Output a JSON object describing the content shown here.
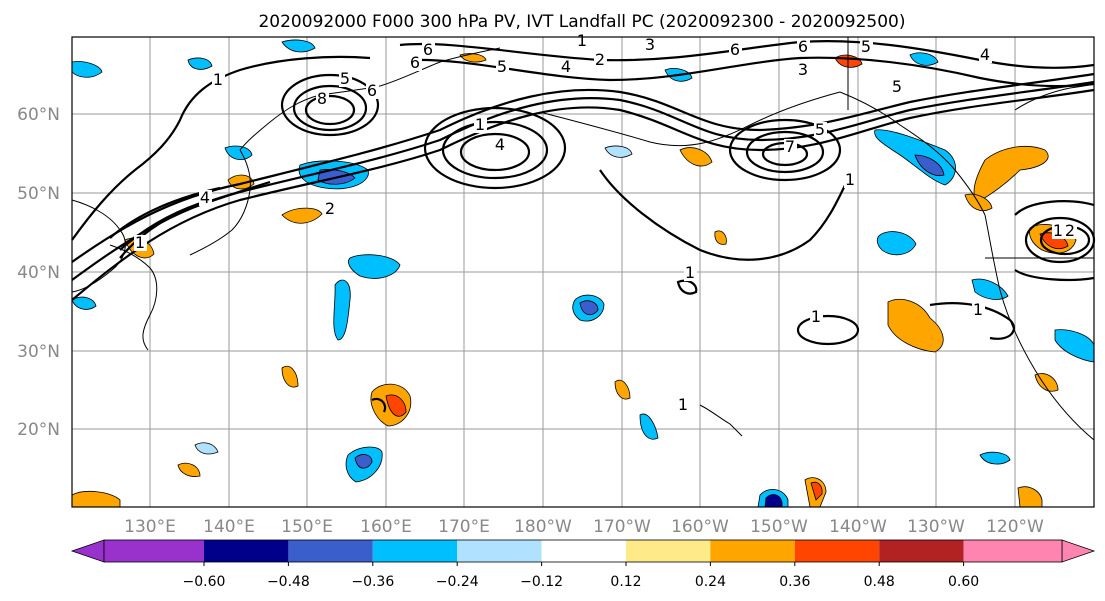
{
  "title": "2020092000 F000 300 hPa PV, IVT Landfall PC (2020092300 - 2020092500)",
  "map": {
    "lon_labels": [
      "130°E",
      "140°E",
      "150°E",
      "160°E",
      "170°E",
      "180°W",
      "170°W",
      "160°W",
      "150°W",
      "140°W",
      "130°W",
      "120°W"
    ],
    "lat_labels": [
      "60°N",
      "50°N",
      "40°N",
      "30°N",
      "20°N"
    ],
    "lon_range": [
      120,
      250
    ],
    "lat_range": [
      10,
      70
    ],
    "contour_labels": [
      "1",
      "1",
      "2",
      "3",
      "4",
      "5",
      "6",
      "6",
      "1",
      "1",
      "2",
      "4",
      "4",
      "5",
      "5",
      "6",
      "8",
      "6",
      "1",
      "1",
      "1",
      "1",
      "3",
      "5",
      "6",
      "7",
      "1",
      "2",
      "1",
      "5",
      "4"
    ]
  },
  "colorbar": {
    "ticks": [
      "−0.60",
      "−0.48",
      "−0.36",
      "−0.24",
      "−0.12",
      "0.12",
      "0.24",
      "0.36",
      "0.48",
      "0.60"
    ],
    "colors": [
      "#9932cc",
      "#00008b",
      "#3a5fcd",
      "#00bfff",
      "#b0e2ff",
      "#ffffff",
      "#ffea8a",
      "#ffa500",
      "#ff4500",
      "#b22222",
      "#ff85b0"
    ]
  }
}
